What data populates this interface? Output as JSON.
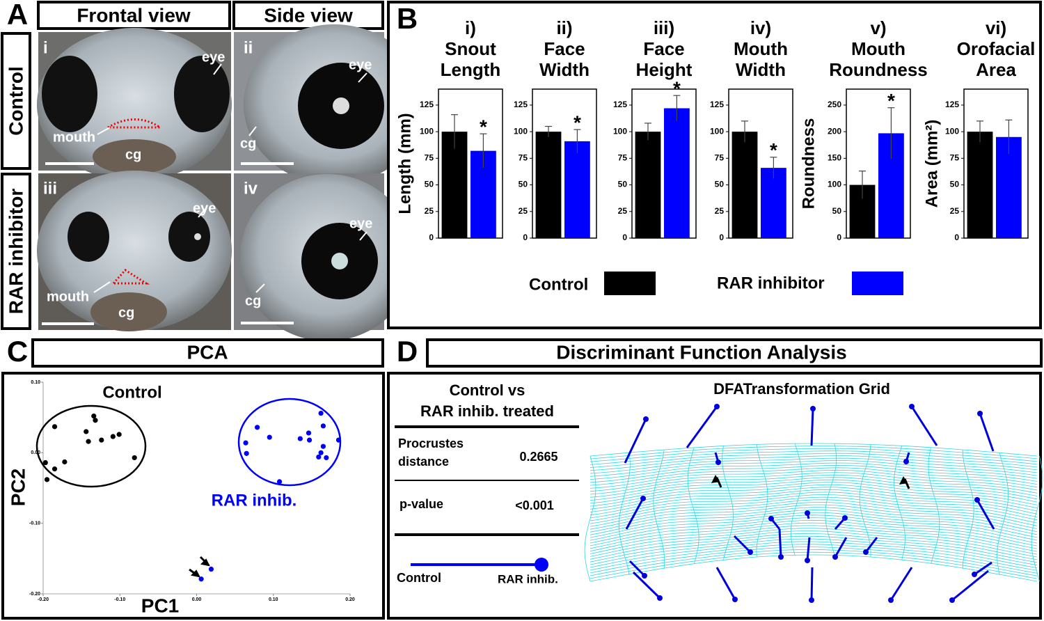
{
  "panel_labels": [
    "A",
    "B",
    "C",
    "D"
  ],
  "panel_a": {
    "headers": [
      "Frontal view",
      "Side view"
    ],
    "rows": [
      "Control",
      "RAR inhibitor"
    ],
    "images": [
      {
        "numeral": "i",
        "labels": [
          "eye",
          "mouth",
          "cg"
        ]
      },
      {
        "numeral": "ii",
        "labels": [
          "eye",
          "cg"
        ]
      },
      {
        "numeral": "iii",
        "labels": [
          "eye",
          "mouth",
          "cg"
        ]
      },
      {
        "numeral": "iv",
        "labels": [
          "eye",
          "cg"
        ]
      }
    ]
  },
  "legend": [
    {
      "name": "Control",
      "color": "#000000"
    },
    {
      "name": "RAR inhibitor",
      "color": "#0000ff"
    }
  ],
  "chart_data": [
    {
      "type": "bar",
      "title": [
        "i)",
        "Snout",
        "Length"
      ],
      "ylabel": "Length (mm)",
      "values": [
        100,
        82
      ],
      "errors": [
        16,
        16
      ],
      "annotations": [
        null,
        "*"
      ],
      "ylim": [
        0,
        140
      ],
      "yticks": [
        0,
        25,
        50,
        75,
        100,
        125
      ]
    },
    {
      "type": "bar",
      "title": [
        "ii)",
        "Face",
        "Width"
      ],
      "values": [
        100,
        91
      ],
      "errors": [
        5,
        11
      ],
      "annotations": [
        null,
        "*"
      ],
      "ylim": [
        0,
        140
      ],
      "yticks": [
        0,
        25,
        50,
        75,
        100,
        125
      ]
    },
    {
      "type": "bar",
      "title": [
        "iii)",
        "Face",
        "Height"
      ],
      "values": [
        100,
        122
      ],
      "errors": [
        8,
        12
      ],
      "annotations": [
        null,
        "*"
      ],
      "ylim": [
        0,
        140
      ],
      "yticks": [
        0,
        25,
        50,
        75,
        100,
        125
      ]
    },
    {
      "type": "bar",
      "title": [
        "iv)",
        "Mouth",
        "Width"
      ],
      "values": [
        100,
        66
      ],
      "errors": [
        10,
        10
      ],
      "annotations": [
        null,
        "*"
      ],
      "ylim": [
        0,
        140
      ],
      "yticks": [
        0,
        25,
        50,
        75,
        100,
        125
      ]
    },
    {
      "type": "bar",
      "title": [
        "v)",
        "Mouth",
        "Roundness"
      ],
      "ylabel": "Roundness",
      "values": [
        100,
        197
      ],
      "errors": [
        26,
        48
      ],
      "annotations": [
        null,
        "*"
      ],
      "ylim": [
        0,
        280
      ],
      "yticks": [
        0,
        50,
        100,
        150,
        200,
        250
      ]
    },
    {
      "type": "bar",
      "title": [
        "vi)",
        "Orofacial",
        "Area"
      ],
      "ylabel": "Area (mm²)",
      "values": [
        100,
        95
      ],
      "errors": [
        10,
        16
      ],
      "annotations": [
        null,
        null
      ],
      "ylim": [
        0,
        140
      ],
      "yticks": [
        0,
        25,
        50,
        75,
        100,
        125
      ]
    },
    {
      "type": "scatter",
      "xlabel": "PC1",
      "ylabel": "PC2",
      "xlim": [
        -0.2,
        0.2
      ],
      "ylim": [
        -0.2,
        0.1
      ],
      "xticks": [
        {
          "value": -0.2,
          "label": "-0.20"
        },
        {
          "value": -0.1,
          "label": "-0.10"
        },
        {
          "value": 0,
          "label": "0.00"
        },
        {
          "value": 0.1,
          "label": "0.10"
        },
        {
          "value": 0.2,
          "label": "0.20"
        }
      ],
      "yticks": [
        {
          "value": -0.2,
          "label": "-0.20"
        },
        {
          "value": -0.1,
          "label": "-0.10"
        },
        {
          "value": 0,
          "label": "0.00"
        },
        {
          "value": 0.1,
          "label": "0.10"
        }
      ],
      "series": [
        {
          "name": "Control",
          "color": "#000000",
          "x": [
            -0.185,
            -0.134,
            -0.132,
            -0.144,
            -0.141,
            -0.124,
            -0.109,
            -0.101,
            -0.081,
            -0.197,
            -0.185,
            -0.172,
            -0.195
          ],
          "y": [
            0.037,
            0.052,
            0.046,
            0.03,
            0.016,
            0.018,
            0.023,
            0.026,
            -0.007,
            -0.014,
            -0.023,
            -0.013,
            -0.038
          ]
        },
        {
          "name": "RAR inhib.",
          "color": "#0000ff",
          "x": [
            0.079,
            0.095,
            0.064,
            0.065,
            0.135,
            0.147,
            0.146,
            0.162,
            0.165,
            0.185,
            0.165,
            0.162,
            0.159,
            0.169,
            0.108,
            0.019,
            0.006
          ],
          "y": [
            0.036,
            0.022,
            0.014,
            -0.001,
            0.02,
            0.018,
            0.028,
            0.056,
            0.038,
            0.018,
            0.009,
            0.0,
            -0.006,
            -0.007,
            -0.041,
            -0.165,
            -0.179
          ]
        }
      ]
    }
  ],
  "panel_c": {
    "title": "PCA"
  },
  "panel_d": {
    "title": "Discriminant Function Analysis",
    "table": {
      "header": [
        "Control vs",
        "RAR inhib. treated"
      ],
      "rows": [
        {
          "label": [
            "Procrustes",
            "distance"
          ],
          "value": "0.2665"
        },
        {
          "label": [
            "p-value"
          ],
          "value": "<0.001"
        }
      ]
    },
    "legend": [
      "Control",
      "RAR inhib."
    ],
    "grid_title": "DFATransformation Grid"
  }
}
